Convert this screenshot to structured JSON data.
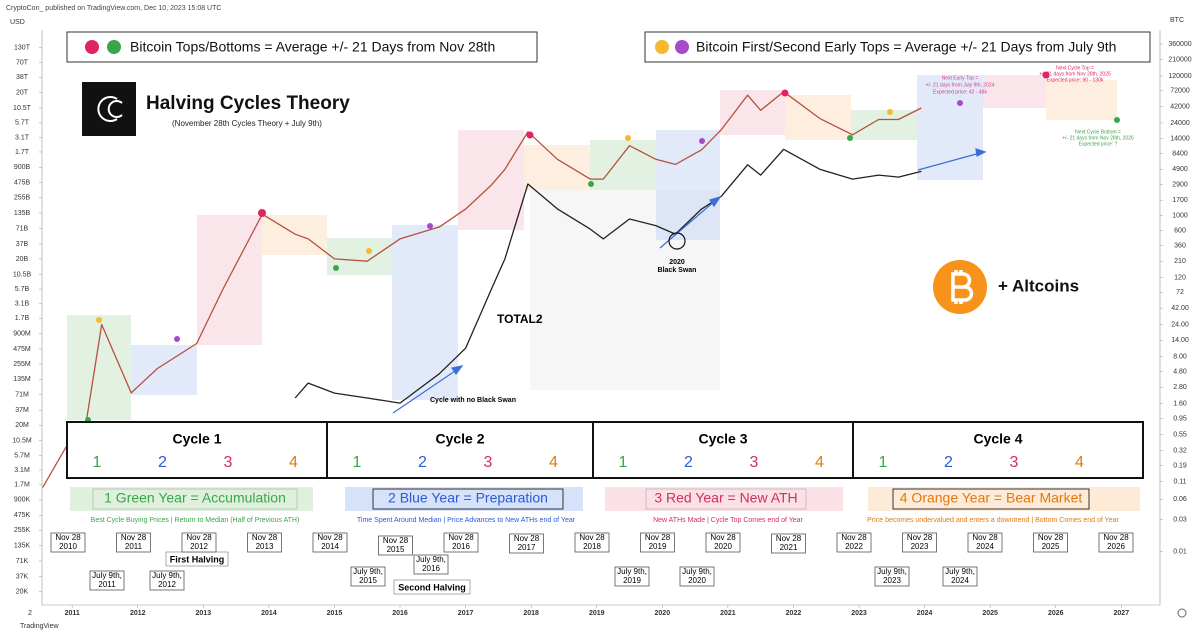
{
  "header": {
    "publisher": "CryptoCon_ published on TradingView.com, Dec 10, 2023 15:08 UTC",
    "left_unit": "USD",
    "right_unit": "BTC",
    "footer": "TradingView",
    "pane": "2"
  },
  "legend_left": "Bitcoin Tops/Bottoms = Average +/- 21 Days from Nov 28th",
  "legend_right": "Bitcoin  First/Second Early Tops = Average +/- 21 Days from July 9th",
  "title": "Halving Cycles Theory",
  "subtitle": "(November 28th Cycles Theory + July 9th)",
  "altcoins": "+ Altcoins",
  "annotations": {
    "next_early_top": [
      "Next Early Top =",
      "+/- 21 days from July 9th, 2024",
      "Expected price: 42 - 48k"
    ],
    "next_cycle_top": [
      "Next Cycle Top =",
      "+/- 21 days from Nov 28th, 2025",
      "Expected price: 90 - 130k"
    ],
    "next_cycle_bottom": [
      "Next Cycle Bottom =",
      "+/- 21 days from Nov 28th, 2026",
      "Expected price: ?"
    ],
    "black_swan": [
      "2020",
      "Black Swan"
    ],
    "no_black_swan": "Cycle with no Black Swan",
    "first_halving": "First Halving",
    "second_halving": "Second Halving"
  },
  "cycles": [
    "Cycle 1",
    "Cycle 2",
    "Cycle 3",
    "Cycle 4"
  ],
  "year_markers": [
    "1",
    "2",
    "3",
    "4"
  ],
  "years": [
    {
      "title": "1 Green Year = Accumulation",
      "text": "Best Cycle Buying Prices | Return to Median (Half of Previous ATH)"
    },
    {
      "title": "2 Blue Year = Preparation",
      "text": "Time Spent Around Median | Price Advances to New ATHs end of Year"
    },
    {
      "title": "3 Red Year = New ATH",
      "text": "New ATHs Made | Cycle Top Comes end of Year"
    },
    {
      "title": "4 Orange Year = Bear Market",
      "text": "Price becomes undervalued and enters a downtrend | Bottom Comes end of Year"
    }
  ],
  "nov_dates": {
    "month": "Nov 28",
    "years": [
      "2010",
      "2011",
      "2012",
      "2013",
      "2014",
      "2015",
      "2016",
      "2017",
      "2018",
      "2019",
      "2020",
      "2021",
      "2022",
      "2023",
      "2024",
      "2025",
      "2026"
    ]
  },
  "july_dates": {
    "month": "July 9th,",
    "years": [
      "2011",
      "2012",
      "2015",
      "2016",
      "2019",
      "2020",
      "2023",
      "2024"
    ]
  },
  "chart_data": {
    "type": "line",
    "log_scale": true,
    "x": [
      2010.55,
      2010.9,
      2011.2,
      2011.45,
      2011.9,
      2012.3,
      2012.9,
      2013.3,
      2013.9,
      2014.4,
      2014.6,
      2015.0,
      2015.5,
      2016.0,
      2016.6,
      2017.0,
      2017.4,
      2017.6,
      2017.95,
      2018.4,
      2018.9,
      2019.1,
      2019.5,
      2019.9,
      2020.2,
      2020.6,
      2020.9,
      2021.3,
      2021.5,
      2021.85,
      2022.4,
      2022.9,
      2023.3,
      2023.6,
      2023.95
    ],
    "xlim": [
      2010.54,
      2027.59
    ],
    "xticks": [
      2011,
      2012,
      2013,
      2014,
      2015,
      2016,
      2017,
      2018,
      2019,
      2020,
      2021,
      2022,
      2023,
      2024,
      2025,
      2026,
      2027
    ],
    "series": [
      {
        "color": "#b5523f",
        "axis": "y2",
        "values": [
          0.09,
          0.35,
          0.7,
          24,
          2.3,
          5.3,
          12.5,
          81,
          1050,
          530,
          450,
          227,
          210,
          450,
          680,
          1250,
          2900,
          4900,
          17700,
          6900,
          3500,
          3500,
          11000,
          6900,
          5800,
          9600,
          19000,
          62000,
          37000,
          70000,
          28000,
          16000,
          27000,
          27000,
          40000
        ]
      },
      {
        "name": "TOTAL2",
        "color": "#222222",
        "values": [
          null,
          null,
          null,
          null,
          null,
          null,
          null,
          null,
          null,
          62000000,
          115000000,
          76000000,
          62000000,
          50000000,
          170000000,
          490000000,
          5900000000,
          20000000000,
          450000000000,
          160000000000,
          69000000000,
          46000000000,
          105000000000,
          80000000000,
          56000000000,
          160000000000,
          270000000000,
          1000000000000,
          650000000000,
          1900000000000,
          830000000000,
          550000000000,
          650000000000,
          600000000000,
          760000000000
        ]
      }
    ],
    "ylim": [
      11400,
      270000000000000
    ],
    "yticks": [
      {
        "value": 130000000000000,
        "label": "130T"
      },
      {
        "value": 70000000000000,
        "label": "70T"
      },
      {
        "value": 38000000000000,
        "label": "38T"
      },
      {
        "value": 20000000000000,
        "label": "20T"
      },
      {
        "value": 10500000000000,
        "label": "10.5T"
      },
      {
        "value": 5700000000000,
        "label": "5.7T"
      },
      {
        "value": 3100000000000,
        "label": "3.1T"
      },
      {
        "value": 1700000000000,
        "label": "1.7T"
      },
      {
        "value": 900000000000,
        "label": "900B"
      },
      {
        "value": 475000000000,
        "label": "475B"
      },
      {
        "value": 255000000000,
        "label": "255B"
      },
      {
        "value": 135000000000,
        "label": "135B"
      },
      {
        "value": 71000000000,
        "label": "71B"
      },
      {
        "value": 37000000000,
        "label": "37B"
      },
      {
        "value": 20000000000,
        "label": "20B"
      },
      {
        "value": 10500000000,
        "label": "10.5B"
      },
      {
        "value": 5700000000,
        "label": "5.7B"
      },
      {
        "value": 3100000000,
        "label": "3.1B"
      },
      {
        "value": 1700000000,
        "label": "1.7B"
      },
      {
        "value": 900000000,
        "label": "900M"
      },
      {
        "value": 475000000,
        "label": "475M"
      },
      {
        "value": 255000000,
        "label": "255M"
      },
      {
        "value": 135000000,
        "label": "135M"
      },
      {
        "value": 71000000,
        "label": "71M"
      },
      {
        "value": 37000000,
        "label": "37M"
      },
      {
        "value": 20000000,
        "label": "20M"
      },
      {
        "value": 10500000,
        "label": "10.5M"
      },
      {
        "value": 5700000,
        "label": "5.7M"
      },
      {
        "value": 3100000,
        "label": "3.1M"
      },
      {
        "value": 1700000,
        "label": "1.7M"
      },
      {
        "value": 900000,
        "label": "900K"
      },
      {
        "value": 475000,
        "label": "475K"
      },
      {
        "value": 255000,
        "label": "255K"
      },
      {
        "value": 135000,
        "label": "135K"
      },
      {
        "value": 71000,
        "label": "71K"
      },
      {
        "value": 37000,
        "label": "37K"
      },
      {
        "value": 20000,
        "label": "20K"
      }
    ],
    "y2lim": [
      0.0016,
      580000
    ],
    "y2ticks": [
      360000,
      210000,
      120000,
      72000,
      42000,
      24000,
      14000,
      8400,
      4900,
      2900,
      1700,
      1000,
      600,
      360,
      210,
      120,
      72,
      {
        "value": 42,
        "label": "42.00"
      },
      {
        "value": 24,
        "label": "24.00"
      },
      {
        "value": 14,
        "label": "14.00"
      },
      {
        "value": 8,
        "label": "8.00"
      },
      {
        "value": 4.8,
        "label": "4.80"
      },
      {
        "value": 2.8,
        "label": "2.80"
      },
      {
        "value": 1.6,
        "label": "1.60"
      },
      0.95,
      0.55,
      0.32,
      0.19,
      0.11,
      0.06,
      0.03,
      0.01
    ]
  }
}
